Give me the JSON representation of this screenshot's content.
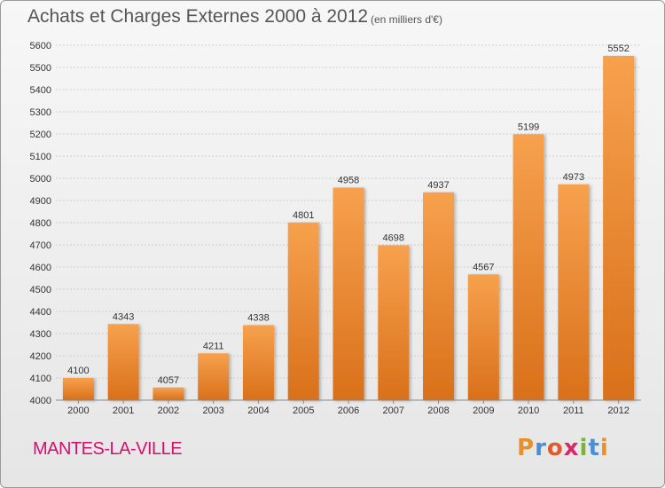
{
  "header": {
    "title": "Achats et Charges Externes 2000 à 2012",
    "subtitle": "(en milliers d'€)"
  },
  "footer": {
    "location": "MANTES-LA-VILLE",
    "logo_text": "Proxiti"
  },
  "colors": {
    "bar_top": "#f7a14e",
    "bar_bottom": "#d9701a",
    "grid": "#cfcfcf",
    "location": "#d2116f"
  },
  "chart_data": {
    "type": "bar",
    "title": "Achats et Charges Externes 2000 à 2012",
    "subtitle": "(en milliers d'€)",
    "categories": [
      "2000",
      "2001",
      "2002",
      "2003",
      "2004",
      "2005",
      "2006",
      "2007",
      "2008",
      "2009",
      "2010",
      "2011",
      "2012"
    ],
    "values": [
      4100,
      4343,
      4057,
      4211,
      4338,
      4801,
      4958,
      4698,
      4937,
      4567,
      5199,
      4973,
      5552
    ],
    "ylim": [
      4000,
      5600
    ],
    "ytick_step": 100,
    "grid": true,
    "data_labels": true
  }
}
